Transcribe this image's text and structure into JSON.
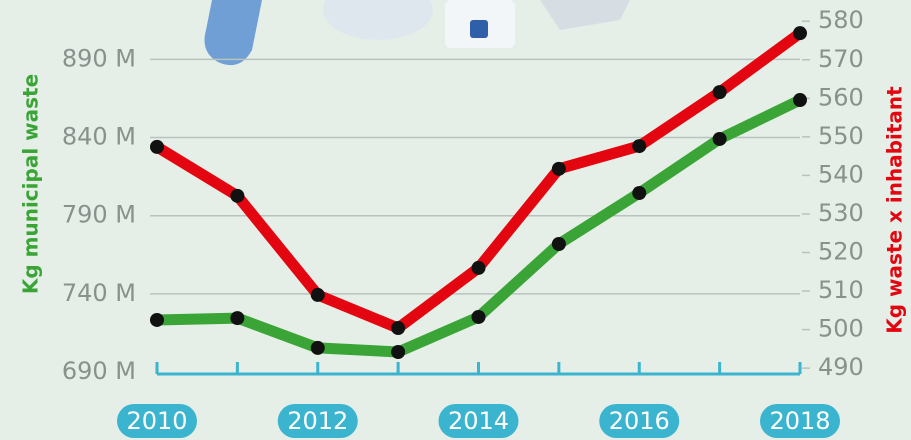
{
  "chart_data": {
    "type": "line",
    "categories": [
      "2010",
      null,
      "2012",
      null,
      "2014",
      null,
      "2016",
      null,
      "2018"
    ],
    "series": [
      {
        "color": "#3aa536",
        "values": [
          723.3,
          724.5,
          705.4,
          702.8,
          725.2,
          771.9,
          804.5,
          839.1,
          864
        ]
      },
      {
        "color": "#e3050f",
        "axis": "y2",
        "values": [
          547.4,
          534.7,
          509,
          500.4,
          516,
          541.7,
          547.6,
          561.6,
          576.9
        ]
      }
    ],
    "ylabel": "Kg municipal waste",
    "y2label": "Kg waste x inhabitant",
    "ylim": [
      690,
      928
    ],
    "yticks": [
      {
        "value": 690,
        "label": "690 M"
      },
      {
        "value": 740,
        "label": "740 M"
      },
      {
        "value": 790,
        "label": "790 M"
      },
      {
        "value": 840,
        "label": "840 M"
      },
      {
        "value": 890,
        "label": "890 M"
      }
    ],
    "y2lim": [
      489,
      585.5
    ],
    "y2ticks": [
      490,
      500,
      510,
      520,
      530,
      540,
      550,
      560,
      570,
      580
    ],
    "grid": true
  }
}
